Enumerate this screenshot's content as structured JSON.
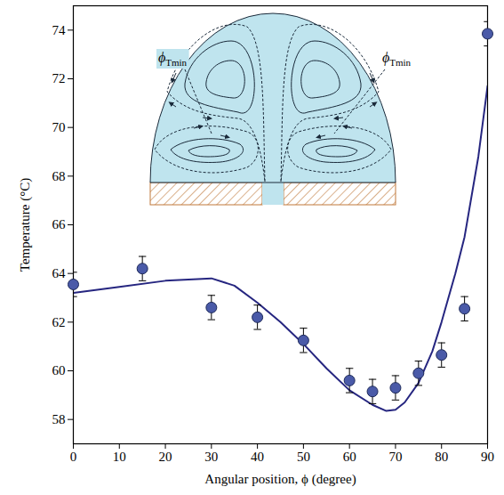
{
  "chart_data": {
    "type": "scatter",
    "x_label": "Angular position, ϕ (degree)",
    "y_label": "Temperature (°C)",
    "xlim": [
      0,
      90
    ],
    "ylim": [
      57,
      75
    ],
    "xticks": [
      0,
      10,
      20,
      30,
      40,
      50,
      60,
      70,
      80,
      90
    ],
    "yticks": [
      58,
      60,
      62,
      64,
      66,
      68,
      70,
      72,
      74
    ],
    "grid": false,
    "series": [
      {
        "type": "scatter",
        "color": "#4a5aa8",
        "marker": "circle",
        "x": [
          0,
          15,
          30,
          40,
          50,
          60,
          65,
          70,
          75,
          80,
          85,
          90
        ],
        "values": [
          63.55,
          64.2,
          62.6,
          62.2,
          61.25,
          59.6,
          59.15,
          59.3,
          59.9,
          60.65,
          62.55,
          73.85
        ],
        "errors": [
          0.5,
          0.5,
          0.5,
          0.5,
          0.5,
          0.5,
          0.5,
          0.5,
          0.5,
          0.5,
          0.5,
          0.5
        ]
      },
      {
        "type": "line",
        "color": "#262680",
        "line_style": "solid",
        "x": [
          0,
          10,
          20,
          30,
          35,
          40,
          45,
          50,
          55,
          60,
          65,
          68,
          70,
          72,
          75,
          78,
          80,
          83,
          85,
          88,
          90
        ],
        "values": [
          63.2,
          63.45,
          63.7,
          63.8,
          63.5,
          62.8,
          62.0,
          61.1,
          60.1,
          59.2,
          58.6,
          58.35,
          58.4,
          58.7,
          59.5,
          60.8,
          62.0,
          64.0,
          65.5,
          68.8,
          71.7
        ]
      }
    ],
    "annotations": [
      {
        "text": "ϕ",
        "subscript": "Tmin"
      },
      {
        "text": "ϕ",
        "subscript": "Tmin"
      }
    ]
  }
}
